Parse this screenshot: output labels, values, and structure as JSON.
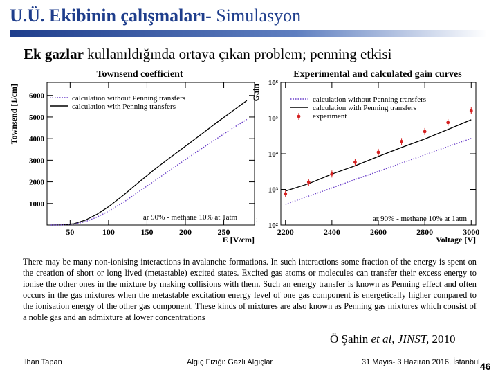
{
  "slide": {
    "title_bold": "U.Ü. Ekibinin çalışmaları-",
    "title_rest": " Simulasyon",
    "subtitle_prefix": "Ek gazlar",
    "subtitle_rest": " kullanıldığında ortaya çıkan problem; penning etkisi",
    "caption": "There may be many non-ionising interactions in avalanche formations. In such interactions some fraction of the energy is spent on the creation of short or long lived (metastable) excited states. Excited gas atoms or molecules can transfer their excess energy to ionise the other ones in the mixture by making collisions with them. Such an energy transfer is known as Penning effect and often occurs in the gas mixtures when the metastable excitation energy level of one gas component is energetically higher compared to the ionisation energy of the other gas component. These kinds of mixtures are also known as Penning gas mixtures which consist of a noble gas and an admixture at lower concentrations",
    "citation_author": "Ö Şahin",
    "citation_etal": "et al,  JINST,",
    "citation_year": " 2010",
    "footer_left": "İlhan Tapan",
    "footer_center": "Algıç Fiziği: Gazlı Algıçlar",
    "footer_right": "31 Mayıs- 3 Haziran 2016, İstanbul",
    "page_number": "46",
    "colors": {
      "title": "#1f3e8c",
      "with_penning": "#000000",
      "without_penning": "#6a3fc9",
      "experiment": "#d42020"
    }
  },
  "chart_data": [
    {
      "type": "line",
      "title": "Townsend coefficient",
      "xlabel": "E [V/cm]",
      "ylabel": "Townsend [1/cm]",
      "x_multiplier_label": "×10³",
      "xlim": [
        20,
        290
      ],
      "ylim": [
        0,
        6600
      ],
      "xticks": [
        "50",
        "100",
        "150",
        "200",
        "250"
      ],
      "xtick_values": [
        50,
        100,
        150,
        200,
        250
      ],
      "yticks": [
        "1000",
        "2000",
        "3000",
        "4000",
        "5000",
        "6000"
      ],
      "ytick_values": [
        1000,
        2000,
        3000,
        4000,
        5000,
        6000
      ],
      "legend": [
        "calculation without Penning transfers",
        "calculation with Penning transfers"
      ],
      "annotation": "ar 90% - methane 10% at 1atm",
      "series": [
        {
          "name": "calculation with Penning transfers",
          "style": "solid",
          "x": [
            25,
            40,
            55,
            70,
            85,
            100,
            120,
            140,
            160,
            180,
            200,
            220,
            240,
            260,
            280
          ],
          "y": [
            0,
            5,
            60,
            230,
            500,
            850,
            1400,
            2000,
            2580,
            3120,
            3650,
            4180,
            4720,
            5240,
            5760
          ]
        },
        {
          "name": "calculation without Penning transfers",
          "style": "dotted",
          "x": [
            25,
            40,
            55,
            70,
            85,
            100,
            120,
            140,
            160,
            180,
            200,
            220,
            240,
            260,
            280
          ],
          "y": [
            0,
            3,
            40,
            160,
            370,
            640,
            1070,
            1560,
            2050,
            2540,
            3030,
            3510,
            3980,
            4450,
            4890
          ]
        }
      ]
    },
    {
      "type": "line",
      "title": "Experimental and calculated gain curves",
      "xlabel": "Voltage [V]",
      "ylabel": "Gain",
      "y_scale": "log",
      "xlim": [
        2180,
        3020
      ],
      "ylim": [
        100,
        1000000
      ],
      "xticks": [
        "2200",
        "2400",
        "2600",
        "2800",
        "3000"
      ],
      "xtick_values": [
        2200,
        2400,
        2600,
        2800,
        3000
      ],
      "yticks": [
        "10²",
        "10³",
        "10⁴",
        "10⁵",
        "10⁶"
      ],
      "ytick_values": [
        100,
        1000,
        10000,
        100000,
        1000000
      ],
      "legend": [
        "calculation without Penning transfers",
        "calculation with Penning transfers",
        "experiment"
      ],
      "annotation": "ar 90% - methane 10% at 1atm",
      "series": [
        {
          "name": "calculation with Penning transfers",
          "style": "solid",
          "x": [
            2200,
            2300,
            2400,
            2500,
            2600,
            2700,
            2800,
            2900,
            3000
          ],
          "y": [
            900,
            1450,
            2700,
            4600,
            8400,
            15000,
            26000,
            48000,
            90000
          ]
        },
        {
          "name": "calculation without Penning transfers",
          "style": "dotted",
          "x": [
            2200,
            2300,
            2400,
            2500,
            2600,
            2700,
            2800,
            2900,
            3000
          ],
          "y": [
            380,
            650,
            1100,
            1900,
            3200,
            5500,
            9300,
            16000,
            27000
          ]
        },
        {
          "name": "experiment",
          "style": "points",
          "x": [
            2200,
            2300,
            2400,
            2500,
            2600,
            2700,
            2800,
            2900,
            3000
          ],
          "y": [
            750,
            1600,
            2700,
            5800,
            11000,
            22000,
            42000,
            75000,
            160000
          ]
        }
      ]
    }
  ]
}
